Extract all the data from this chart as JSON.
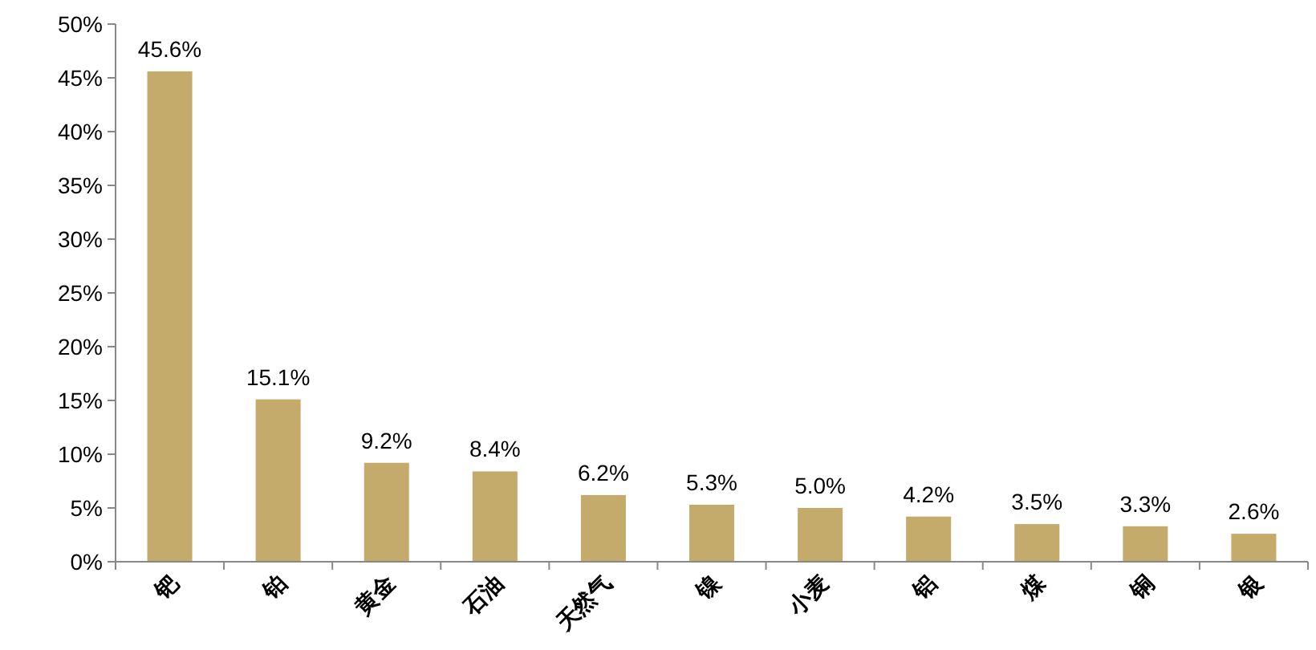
{
  "chart_data": {
    "type": "bar",
    "categories": [
      "钯",
      "铂",
      "黄金",
      "石油",
      "天然气",
      "镍",
      "小麦",
      "铝",
      "煤",
      "铜",
      "银"
    ],
    "values": [
      45.6,
      15.1,
      9.2,
      8.4,
      6.2,
      5.3,
      5.0,
      4.2,
      3.5,
      3.3,
      2.6
    ],
    "color": "#c4aa6b",
    "ylim": [
      0,
      50
    ],
    "yticks": [
      {
        "value": 0,
        "label": "0%"
      },
      {
        "value": 5,
        "label": "5%"
      },
      {
        "value": 10,
        "label": "10%"
      },
      {
        "value": 15,
        "label": "15%"
      },
      {
        "value": 20,
        "label": "20%"
      },
      {
        "value": 25,
        "label": "25%"
      },
      {
        "value": 30,
        "label": "30%"
      },
      {
        "value": 35,
        "label": "35%"
      },
      {
        "value": 40,
        "label": "40%"
      },
      {
        "value": 45,
        "label": "45%"
      },
      {
        "value": 50,
        "label": "50%"
      }
    ],
    "value_labels": [
      "45.6%",
      "15.1%",
      "9.2%",
      "8.4%",
      "6.2%",
      "5.3%",
      "5.0%",
      "4.2%",
      "3.5%",
      "3.3%",
      "2.6%"
    ],
    "grid": false
  }
}
